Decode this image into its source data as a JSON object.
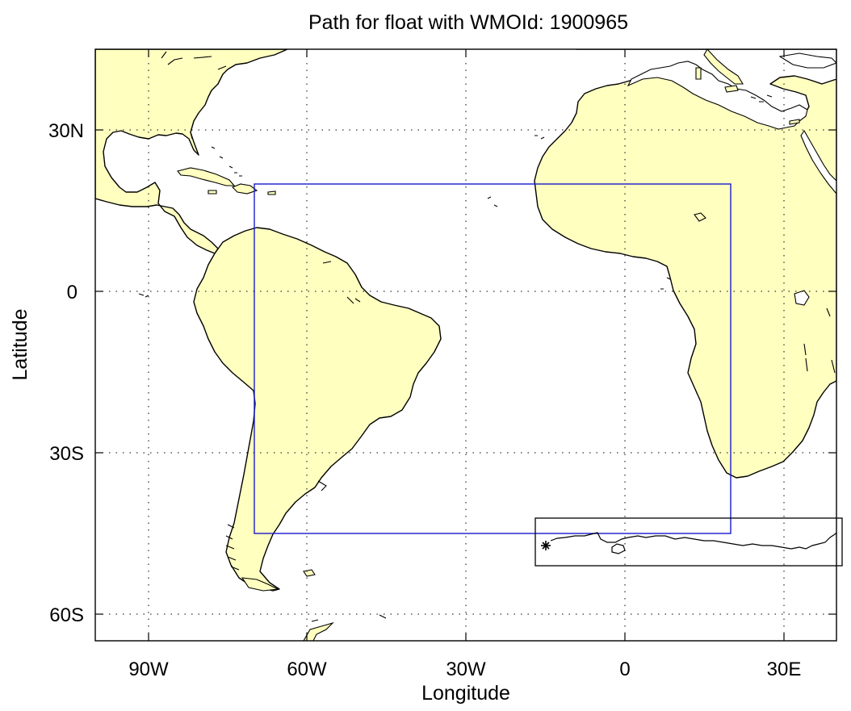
{
  "title": "Path for float with WMOId: 1900965",
  "xlabel": "Longitude",
  "ylabel": "Latitude",
  "x_ticks": [
    {
      "lon": -90,
      "label": "90W"
    },
    {
      "lon": -60,
      "label": "60W"
    },
    {
      "lon": -30,
      "label": "30W"
    },
    {
      "lon": 0,
      "label": "0"
    },
    {
      "lon": 30,
      "label": "30E"
    }
  ],
  "y_ticks": [
    {
      "lat": 30,
      "label": "30N"
    },
    {
      "lat": 0,
      "label": "0"
    },
    {
      "lat": -30,
      "label": "30S"
    },
    {
      "lat": -60,
      "label": "60S"
    }
  ],
  "colors": {
    "land": "#ffffc0",
    "ocean": "#ffffff",
    "coast": "#000000",
    "deployment_region": "#1a1acc",
    "float_region": "#000000"
  },
  "map_data": {
    "type": "map",
    "projection": "equirectangular",
    "lon_range": [
      -100,
      40
    ],
    "lat_range": [
      -65,
      45
    ],
    "grid": true,
    "regions": [
      {
        "color": "blue",
        "lon_range": [
          -70,
          20
        ],
        "lat_range": [
          -45,
          20
        ]
      },
      {
        "color": "black",
        "lon_range": [
          -17,
          40
        ],
        "lat_range": [
          -51,
          -42
        ]
      }
    ],
    "float_path": {
      "marker": "asterisk",
      "start": {
        "lon": -15,
        "lat": -47.5
      }
    }
  }
}
